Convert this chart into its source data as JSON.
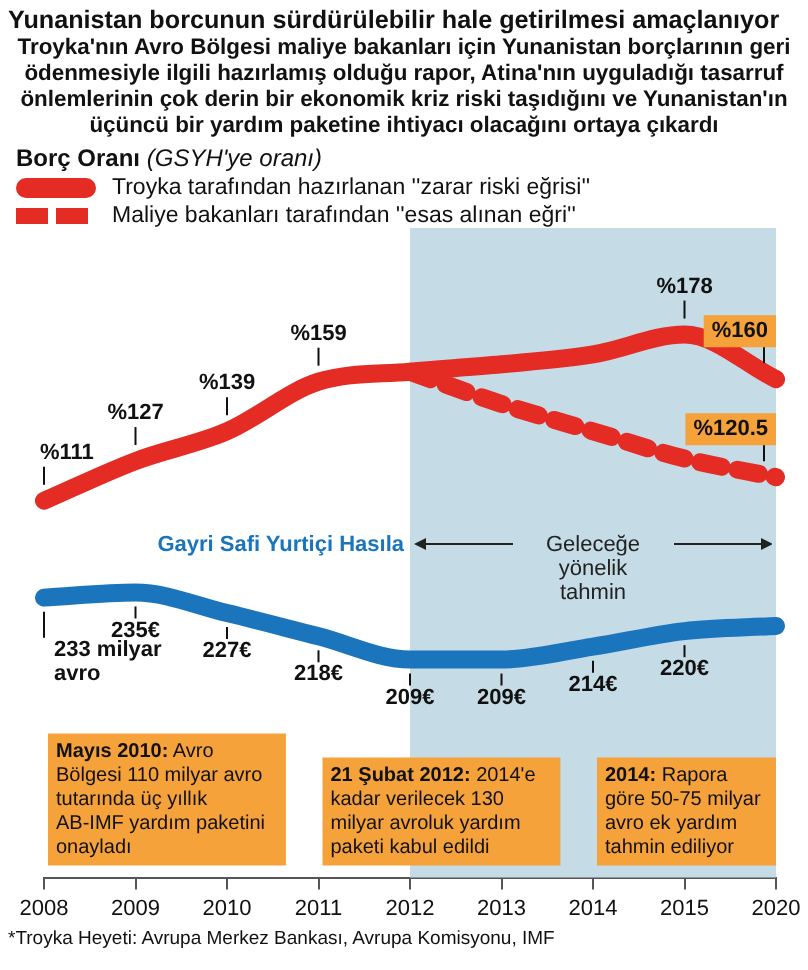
{
  "chart_data": [
    {
      "type": "line",
      "title": "Yunanistan borcunun sürdürülebilir hale getirilmesi amaçlanıyor",
      "subtitle": "Troyka'nın Avro Bölgesi maliye bakanları için Yunanistan borçlarının geri ödenmesiyle ilgili hazırlamış olduğu rapor, Atina'nın uyguladığı tasarruf önlemlerinin çok derin bir ekonomik kriz riski taşıdığını ve Yunanistan'ın üçüncü bir yardım paketine ihtiyacı olacağını ortaya çıkardı",
      "legend_title": "Borç Oranı (GSYH'ye oranı)",
      "legend": "top left",
      "grid": false,
      "tick_labels": false,
      "marker": "none",
      "categories": [
        "2008",
        "2009",
        "2010",
        "2011",
        "2012",
        "2013",
        "2014",
        "2015",
        "2020"
      ],
      "series": [
        {
          "name": "Troyka tarafından hazırlanan ''zarar riski eğrisi''",
          "color": "#e42b24",
          "line_style": "solid",
          "values": [
            111,
            127,
            139,
            159,
            163,
            166,
            170,
            178,
            160
          ],
          "value_labels": [
            "%111",
            "%127",
            "%139",
            "%159",
            null,
            null,
            null,
            "%178",
            "%160"
          ]
        },
        {
          "name": "Maliye bakanları tarafından ''esas alınan eğri''",
          "color": "#e42b24",
          "line_style": "dashed",
          "values": [
            null,
            null,
            null,
            null,
            163,
            150,
            139,
            128,
            120.5
          ],
          "value_labels": [
            null,
            null,
            null,
            null,
            null,
            null,
            null,
            null,
            "%120.5"
          ]
        }
      ],
      "bands": [
        {
          "axis": "x",
          "from": "2012",
          "to": "2020",
          "color": "#c5dbe6"
        }
      ]
    },
    {
      "type": "line",
      "grid": false,
      "tick_labels": "x",
      "marker": "none",
      "categories": [
        "2008",
        "2009",
        "2010",
        "2011",
        "2012",
        "2013",
        "2014",
        "2015",
        "2020"
      ],
      "series": [
        {
          "name": "Gayri Safi Yurtiçi Hasıla",
          "color": "#1b75bc",
          "line_style": "solid",
          "values": [
            233,
            235,
            227,
            218,
            209,
            209,
            214,
            220,
            222
          ],
          "value_labels": [
            "233 milyar avro",
            "235€",
            "227€",
            "218€",
            "209€",
            "209€",
            "214€",
            "220€",
            null
          ]
        }
      ],
      "bands": [
        {
          "axis": "x",
          "from": "2012",
          "to": "2020",
          "label": "Geleceğe yönelik tahmin",
          "color": "#c5dbe6"
        }
      ],
      "annotations": [
        "Mayıs 2010: Avro Bölgesi 110 milyar avro tutarında üç yıllık AB-IMF yardım paketini onayladı",
        "21 Şubat 2012: 2014'e kadar verilecek 130 milyar avroluk yardım paketi kabul edildi",
        "2014: Rapora göre 50-75 milyar avro ek yardım tahmin ediliyor",
        "*Troyka Heyeti: Avrupa Merkez Bankası, Avrupa Komisyonu, IMF"
      ]
    }
  ]
}
